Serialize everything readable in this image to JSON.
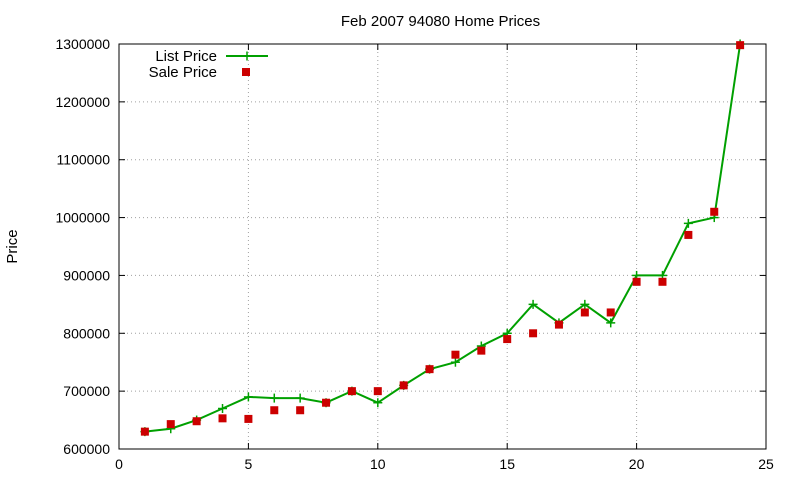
{
  "chart_data": {
    "type": "line",
    "title": "Feb 2007 94080 Home Prices",
    "xlabel": "",
    "ylabel": "Price",
    "xlim": [
      0,
      25
    ],
    "ylim": [
      600000,
      1300000
    ],
    "x_ticks": [
      0,
      5,
      10,
      15,
      20,
      25
    ],
    "y_ticks": [
      600000,
      700000,
      800000,
      900000,
      1000000,
      1100000,
      1200000,
      1300000
    ],
    "grid": true,
    "legend_position": "top-left",
    "series": [
      {
        "name": "List Price",
        "style": "line-with-plus-markers",
        "color": "#00a000",
        "x": [
          1,
          2,
          3,
          4,
          5,
          6,
          7,
          8,
          9,
          10,
          11,
          12,
          13,
          14,
          15,
          16,
          17,
          18,
          19,
          20,
          21,
          22,
          23,
          24
        ],
        "y": [
          630000,
          635000,
          650000,
          670000,
          690000,
          688000,
          688000,
          680000,
          700000,
          680000,
          710000,
          738000,
          750000,
          778000,
          800000,
          850000,
          818000,
          850000,
          818000,
          900000,
          900000,
          990000,
          1000000,
          1300000
        ]
      },
      {
        "name": "Sale Price",
        "style": "square-markers",
        "color": "#cc0000",
        "x": [
          1,
          2,
          3,
          4,
          5,
          6,
          7,
          8,
          9,
          10,
          11,
          12,
          13,
          14,
          15,
          16,
          17,
          18,
          19,
          20,
          21,
          22,
          23,
          24
        ],
        "y": [
          630000,
          643000,
          648000,
          653000,
          652000,
          667000,
          667000,
          680000,
          700000,
          700000,
          710000,
          738000,
          763000,
          770000,
          790000,
          800000,
          815000,
          836000,
          836000,
          889000,
          889000,
          970000,
          1010000,
          1298000
        ]
      }
    ]
  }
}
